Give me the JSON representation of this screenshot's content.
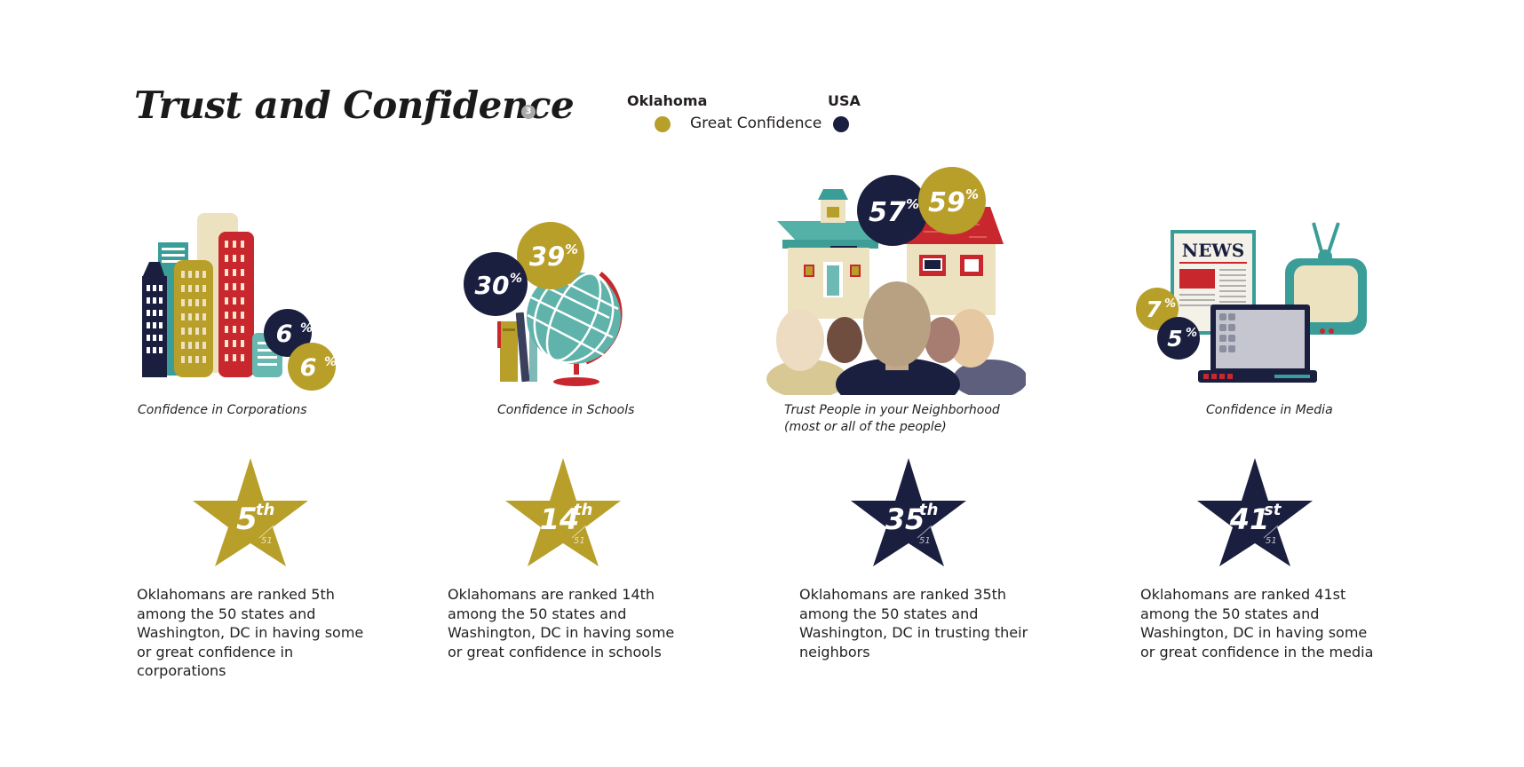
{
  "title": "Trust and Confidence",
  "title_badge": "3",
  "legend": {
    "oklahoma_label": "Oklahoma",
    "usa_label": "USA",
    "measure": "Great Confidence",
    "oklahoma_color": "#b89f2a",
    "usa_color": "#1b1f3f"
  },
  "panels": [
    {
      "caption": "Confidence in Corporations",
      "caption2": "",
      "oklahoma_pct": "6",
      "usa_pct": "6",
      "rank": "5",
      "rank_suffix": "th",
      "rank_of": "51",
      "star_color": "#b89f2a",
      "description": "Oklahomans are ranked 5th among the 50 states and Washington, DC in having some or great confidence in corporations",
      "icons": [
        "city-buildings-icon"
      ]
    },
    {
      "caption": "Confidence in Schools",
      "caption2": "",
      "oklahoma_pct": "39",
      "usa_pct": "30",
      "rank": "14",
      "rank_suffix": "th",
      "rank_of": "51",
      "star_color": "#b89f2a",
      "description": "Oklahomans are ranked 14th among the 50 states and Washington, DC in having some or great confidence in schools",
      "icons": [
        "books-icon",
        "globe-icon"
      ]
    },
    {
      "caption": "Trust People in your Neighborhood",
      "caption2": "(most or all of the people)",
      "oklahoma_pct": "59",
      "usa_pct": "57",
      "rank": "35",
      "rank_suffix": "th",
      "rank_of": "51",
      "star_color": "#1b1f3f",
      "description": "Oklahomans are ranked 35th among the 50 states and Washington, DC in trusting their neighbors",
      "icons": [
        "houses-icon",
        "people-icon"
      ]
    },
    {
      "caption": "Confidence in Media",
      "caption2": "",
      "oklahoma_pct": "7",
      "usa_pct": "5",
      "rank": "41",
      "rank_suffix": "st",
      "rank_of": "51",
      "star_color": "#1b1f3f",
      "description": "Oklahomans are ranked 41st among the 50 states and Washington, DC in having some or great confidence in the media",
      "icons": [
        "newspaper-icon",
        "television-icon",
        "laptop-icon"
      ],
      "newspaper_masthead": "NEWS"
    }
  ]
}
